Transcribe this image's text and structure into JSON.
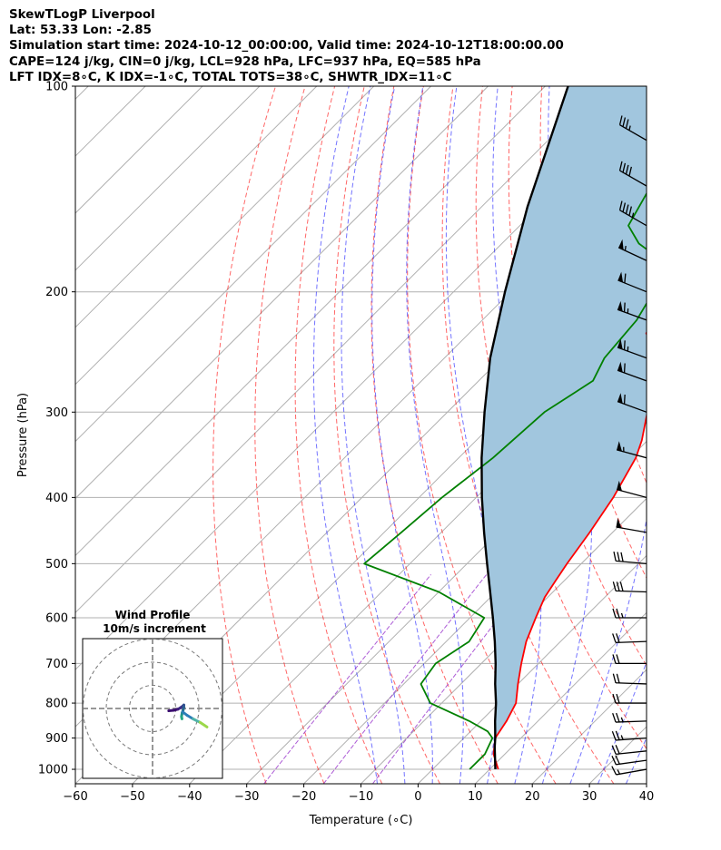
{
  "header": {
    "title": "SkewTLogP Liverpool",
    "location": "Lat: 53.33   Lon: -2.85",
    "times": "Simulation start time: 2024-10-12_00:00:00, Valid time: 2024-10-12T18:00:00.00",
    "indices1": "CAPE=124 j/kg, CIN=0 j/kg, LCL=928 hPa, LFC=937 hPa, EQ=585 hPa",
    "indices2": "LFT IDX=8∘C, K IDX=-1∘C, TOTAL TOTS=38∘C, SHWTR_IDX=11∘C"
  },
  "chart_data": {
    "type": "skewt-logp",
    "xlabel": "Temperature (∘C)",
    "ylabel": "Pressure (hPa)",
    "xlim": [
      -60,
      40
    ],
    "ylim": [
      1050,
      100
    ],
    "y_scale": "log",
    "grid": true,
    "x_ticks": [
      -60,
      -50,
      -40,
      -30,
      -20,
      -10,
      0,
      10,
      20,
      30,
      40
    ],
    "y_ticks": [
      1000,
      900,
      800,
      700,
      600,
      500,
      400,
      300,
      200,
      100
    ],
    "colors": {
      "temperature": "#ff0000",
      "dewpoint": "#008000",
      "parcel": "#000000",
      "cape_fill": "#a1c6de",
      "cin_fill": "#f4a6ac",
      "dry_adiabats": "#ff0000",
      "moist_adiabats": "#0000ff",
      "mixing_ratio": "#9933cc",
      "isotherms": "#b0b0b0",
      "gridlines": "#b0b0b0"
    },
    "series": [
      {
        "key": "temperature",
        "p": [
          1000,
          950,
          900,
          850,
          800,
          750,
          700,
          650,
          600,
          560,
          530,
          500,
          450,
          400,
          350,
          330,
          300,
          250,
          230,
          210,
          200,
          180,
          160,
          140,
          120,
          110,
          100
        ],
        "t": [
          11.5,
          8,
          5.5,
          4.5,
          3,
          0,
          -3,
          -6,
          -8.5,
          -10.5,
          -11.5,
          -12.5,
          -14,
          -16,
          -19,
          -21,
          -25,
          -33,
          -39,
          -41.5,
          -43,
          -48,
          -53,
          -58,
          -64,
          -68,
          -71
        ]
      },
      {
        "key": "dewpoint",
        "p": [
          1000,
          950,
          900,
          880,
          850,
          800,
          750,
          700,
          650,
          600,
          550,
          500,
          450,
          400,
          350,
          300,
          270,
          250,
          220,
          200,
          180,
          170,
          160,
          140,
          120,
          100
        ],
        "t": [
          6.5,
          6.5,
          5,
          3,
          -2,
          -12,
          -17,
          -18,
          -16,
          -17.5,
          -30,
          -48,
          -47,
          -46,
          -44,
          -43,
          -40,
          -42,
          -43,
          -45,
          -49,
          -56,
          -61,
          -64,
          -68,
          -72
        ]
      },
      {
        "key": "parcel",
        "p": [
          1000,
          928,
          900,
          850,
          800,
          750,
          700,
          650,
          600,
          550,
          500,
          450,
          400,
          350,
          300,
          250,
          200,
          150,
          100
        ],
        "t": [
          11,
          7,
          5.5,
          2.5,
          -0.5,
          -4,
          -7.5,
          -11.5,
          -16,
          -21,
          -26.5,
          -32.5,
          -39,
          -46,
          -53.5,
          -62,
          -71,
          -82,
          -96
        ]
      }
    ],
    "wind_barbs": {
      "p": [
        1000,
        970,
        940,
        900,
        850,
        800,
        750,
        700,
        650,
        600,
        550,
        500,
        450,
        400,
        350,
        300,
        270,
        250,
        220,
        200,
        180,
        160,
        140,
        120,
        100
      ],
      "speed_kt": [
        15,
        20,
        20,
        25,
        25,
        20,
        20,
        20,
        20,
        25,
        30,
        30,
        50,
        50,
        55,
        60,
        60,
        65,
        65,
        60,
        55,
        45,
        40,
        35,
        30
      ],
      "direction_deg": [
        260,
        262,
        264,
        266,
        268,
        270,
        272,
        270,
        268,
        270,
        272,
        275,
        280,
        285,
        285,
        290,
        290,
        290,
        290,
        292,
        295,
        300,
        300,
        300,
        300
      ]
    },
    "hodograph": {
      "title": "Wind Profile",
      "subtitle": "10m/s increment",
      "ring_step": 10,
      "u": [
        7,
        9,
        11,
        12,
        13,
        13.5,
        13.5,
        13.2,
        12.8,
        12.5,
        12.7
      ],
      "v": [
        -1,
        -0.8,
        -0.3,
        0.3,
        1,
        1.5,
        0.5,
        -0.7,
        -1.8,
        -3.5,
        -4.5
      ],
      "u_tail": [
        13,
        15,
        17.5,
        20.5,
        23.5
      ],
      "v_tail": [
        -1.5,
        -3,
        -4.5,
        -6,
        -8
      ]
    }
  }
}
